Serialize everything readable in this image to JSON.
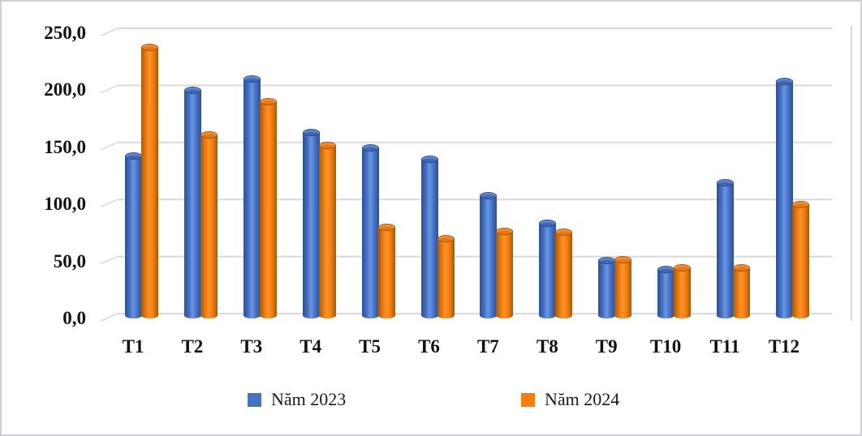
{
  "figure": {
    "background": "#ffffff",
    "border_color": "#cdd0d4"
  },
  "chart_data": {
    "type": "bar",
    "chart_style": "3d-cylinder-clustered",
    "title": "",
    "xlabel": "",
    "ylabel": "",
    "categories": [
      "T1",
      "T2",
      "T3",
      "T4",
      "T5",
      "T6",
      "T7",
      "T8",
      "T9",
      "T10",
      "T11",
      "T12"
    ],
    "series": [
      {
        "name": "Năm 2023",
        "color": "#4472C4",
        "values": [
          143,
          200,
          210,
          163,
          150,
          140,
          108,
          84,
          51,
          43,
          119,
          208
        ]
      },
      {
        "name": "Năm 2024",
        "color": "#F97C0C",
        "values": [
          238,
          161,
          190,
          152,
          80,
          70,
          77,
          76,
          52,
          45,
          45,
          100
        ]
      }
    ],
    "ylim": [
      0,
      250
    ],
    "ytick_step": 50,
    "ytick_labels": [
      "0,0",
      "50,0",
      "100,0",
      "150,0",
      "200,0",
      "250,0"
    ],
    "grid": true,
    "gridline_color": "#d9d9d9",
    "legend_position": "bottom"
  }
}
